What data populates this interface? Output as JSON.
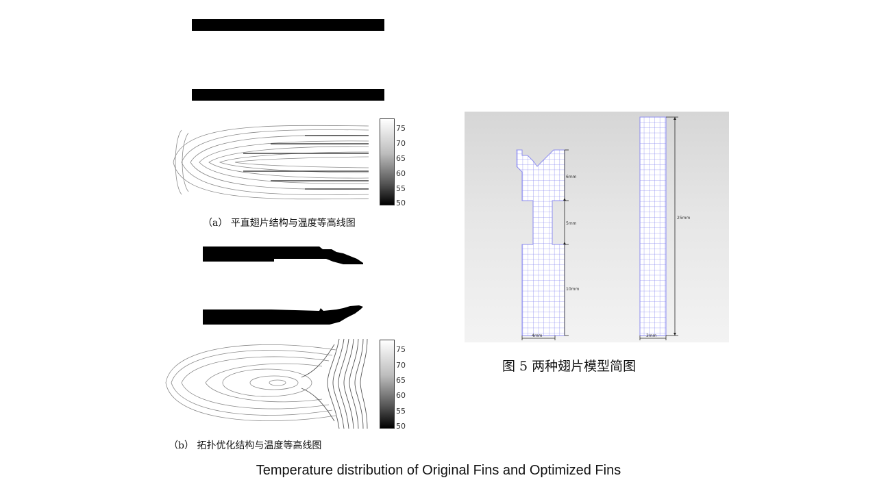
{
  "panel_a": {
    "caption": "（a） 平直翅片结构与温度等高线图",
    "colorbar_ticks": [
      "75",
      "70",
      "65",
      "60",
      "55",
      "50"
    ]
  },
  "panel_b": {
    "caption": "（b） 拓扑优化结构与温度等高线图",
    "colorbar_ticks": [
      "75",
      "70",
      "65",
      "60",
      "55",
      "50"
    ]
  },
  "figure5": {
    "title": "图 5  两种翅片模型简图",
    "optimized_fin": {
      "dims": [
        "6mm",
        "5mm",
        "10mm"
      ],
      "width": "4mm"
    },
    "straight_fin": {
      "height": "25mm",
      "width": "3mm"
    }
  },
  "caption": "Temperature distribution of Original Fins and Optimized Fins"
}
